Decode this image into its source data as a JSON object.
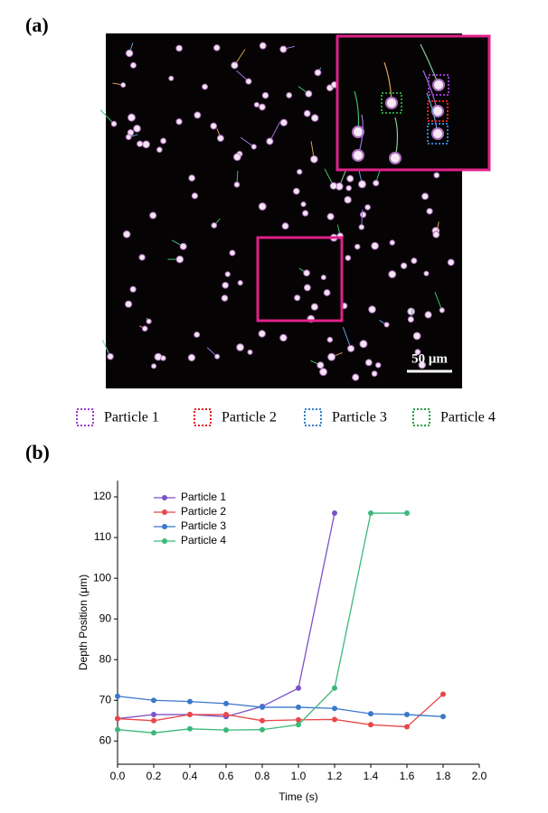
{
  "panel_labels": [
    "(a)",
    "(b)"
  ],
  "image": {
    "scale_bar": "50 μm",
    "legend": [
      "Particle 1",
      "Particle 2",
      "Particle 3",
      "Particle 4"
    ]
  },
  "chart_data": {
    "type": "line",
    "x": [
      0,
      0.2,
      0.4,
      0.6,
      0.8,
      1.0,
      1.2,
      1.4,
      1.6,
      1.8
    ],
    "series": [
      {
        "name": "Particle 1",
        "color": "#7b52c9",
        "values": [
          65.5,
          66.5,
          66.5,
          66,
          68.5,
          73,
          116,
          null,
          null,
          null
        ]
      },
      {
        "name": "Particle 2",
        "color": "#e8474a",
        "values": [
          65.5,
          65,
          66.5,
          66.5,
          65,
          65.2,
          65.3,
          64,
          63.5,
          71.5
        ]
      },
      {
        "name": "Particle 3",
        "color": "#3b78c9",
        "values": [
          71,
          70,
          69.7,
          69.2,
          68.3,
          68.3,
          68,
          66.7,
          66.5,
          66
        ]
      },
      {
        "name": "Particle 4",
        "color": "#3cb87a",
        "values": [
          62.8,
          62,
          63,
          62.7,
          62.8,
          64,
          73,
          116,
          116,
          null
        ]
      }
    ],
    "xlabel": "Time (s)",
    "ylabel": "Depth Position (μm)",
    "xlim": [
      0,
      2.0
    ],
    "xticks": [
      {
        "value": 0,
        "label": "0.0"
      },
      {
        "value": 0.2,
        "label": "0.2"
      },
      {
        "value": 0.4,
        "label": "0.4"
      },
      {
        "value": 0.6,
        "label": "0.6"
      },
      {
        "value": 0.8,
        "label": "0.8"
      },
      {
        "value": 1.0,
        "label": "1.0"
      },
      {
        "value": 1.2,
        "label": "1.2"
      },
      {
        "value": 1.4,
        "label": "1.4"
      },
      {
        "value": 1.6,
        "label": "1.6"
      },
      {
        "value": 1.8,
        "label": "1.8"
      },
      {
        "value": 2.0,
        "label": "2.0"
      }
    ],
    "ylim": [
      54.3,
      124
    ],
    "yticks": [
      60,
      70,
      80,
      90,
      100,
      110,
      120
    ],
    "legend": "upper left",
    "grid": false
  }
}
